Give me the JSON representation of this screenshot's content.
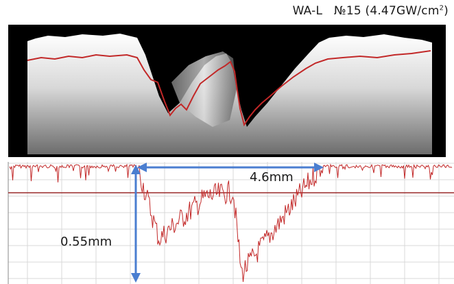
{
  "header": {
    "sample_name": "WA-L",
    "sample_number": "№15",
    "fluence": "(4.47GW/cm",
    "fluence_exp": "2",
    "fluence_close": ")"
  },
  "annotations": {
    "width_label": "4.6mm",
    "depth_label": "0.55mm"
  },
  "colors": {
    "map_background": "#000000",
    "trace": "#c22828",
    "grid": "#d8d8d8",
    "arrow": "#4a7ed0",
    "reference_line": "#9a2a2a"
  }
}
